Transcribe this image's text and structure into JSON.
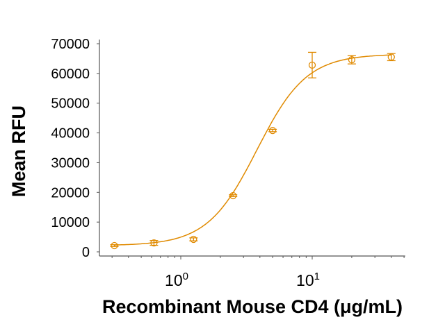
{
  "chart_data": {
    "type": "scatter",
    "title": "",
    "xlabel": "Recombinant Mouse CD4 (μg/mL)",
    "ylabel": "Mean RFU",
    "x_scale": "log",
    "xlim": [
      0.24,
      51
    ],
    "ylim": [
      0,
      70000
    ],
    "grid": false,
    "color": "#E08A00",
    "x_ticks": [
      {
        "value": 1,
        "base": "10",
        "exp": "0"
      },
      {
        "value": 10,
        "base": "10",
        "exp": "1"
      }
    ],
    "y_ticks": [
      0,
      10000,
      20000,
      30000,
      40000,
      50000,
      60000,
      70000
    ],
    "series": [
      {
        "x": [
          0.3125,
          0.625,
          1.25,
          2.5,
          5,
          10,
          20,
          40
        ],
        "y": [
          2100,
          3000,
          4200,
          18900,
          40800,
          62800,
          64600,
          65500
        ],
        "error": [
          300,
          800,
          500,
          300,
          400,
          4300,
          1400,
          1200
        ]
      }
    ],
    "fit": {
      "model": "4PL",
      "bottom": 2100,
      "top": 66500,
      "ec50": 3.8,
      "hill": 2.3
    }
  }
}
